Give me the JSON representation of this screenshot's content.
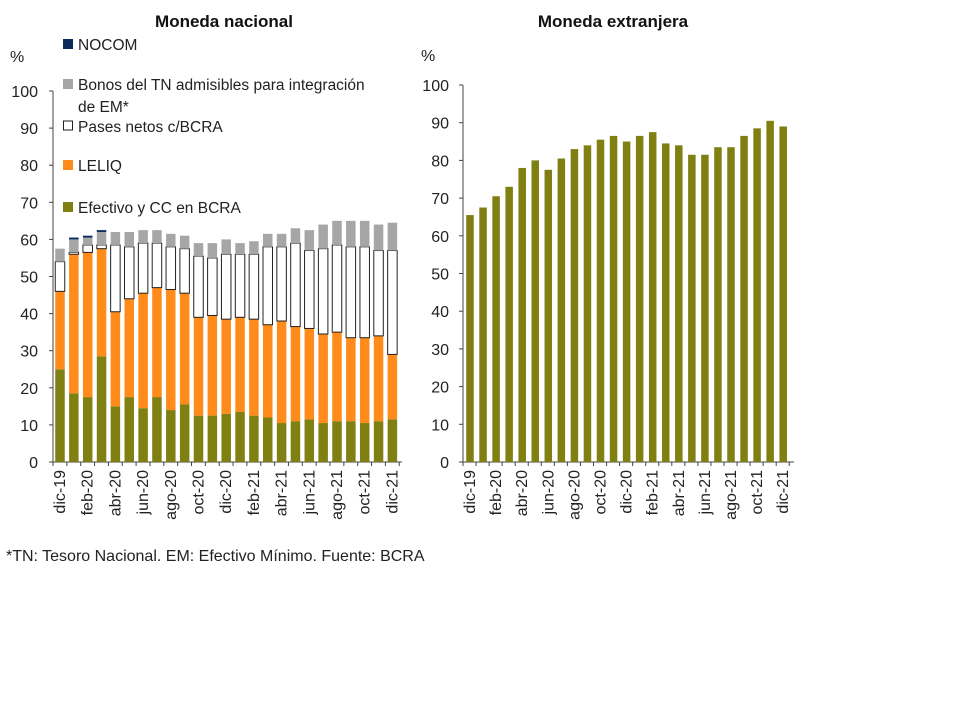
{
  "footnote": "*TN: Tesoro Nacional. EM: Efectivo Mínimo. Fuente: BCRA",
  "colors": {
    "nocom": "#0b2a5b",
    "bonos": "#a6a6a6",
    "pases": "#ffffff",
    "leliq": "#ff8c1a",
    "efectivo": "#7f7f12",
    "fx": "#7f7f12"
  },
  "chart_data": [
    {
      "type": "bar",
      "stacked": true,
      "title": "Moneda nacional",
      "ylabel": "%",
      "ylim": [
        0,
        100
      ],
      "yticks": [
        0,
        10,
        20,
        30,
        40,
        50,
        60,
        70,
        80,
        90,
        100
      ],
      "categories": [
        "dic-19",
        "ene-20",
        "feb-20",
        "mar-20",
        "abr-20",
        "may-20",
        "jun-20",
        "jul-20",
        "ago-20",
        "sep-20",
        "oct-20",
        "nov-20",
        "dic-20",
        "ene-21",
        "feb-21",
        "mar-21",
        "abr-21",
        "may-21",
        "jun-21",
        "jul-21",
        "ago-21",
        "sep-21",
        "oct-21",
        "nov-21",
        "dic-21"
      ],
      "tick_labels": [
        "dic-19",
        "feb-20",
        "abr-20",
        "jun-20",
        "ago-20",
        "oct-20",
        "dic-20",
        "feb-21",
        "abr-21",
        "jun-21",
        "ago-21",
        "oct-21",
        "dic-21"
      ],
      "legend": {
        "position": "top-left",
        "items": [
          {
            "key": "nocom",
            "label": "NOCOM"
          },
          {
            "key": "bonos",
            "label": "Bonos del TN admisibles para integración",
            "label2": "de EM*"
          },
          {
            "key": "pases",
            "label": "Pases netos c/BCRA"
          },
          {
            "key": "leliq",
            "label": "LELIQ"
          },
          {
            "key": "efectivo",
            "label": "Efectivo y CC en BCRA"
          }
        ]
      },
      "series": [
        {
          "name": "Efectivo y CC en BCRA",
          "key": "efectivo",
          "values": [
            25,
            18.5,
            17.5,
            28.5,
            15,
            17.5,
            14.5,
            17.5,
            14,
            15.5,
            12.5,
            12.5,
            13,
            13.5,
            12.5,
            12,
            10.5,
            11,
            11.5,
            10.5,
            11,
            11,
            10.5,
            11,
            11.5
          ]
        },
        {
          "name": "LELIQ",
          "key": "leliq",
          "values": [
            21,
            37.5,
            39,
            29,
            25.5,
            26.5,
            31,
            29.5,
            32.5,
            30,
            26.5,
            27,
            25.5,
            25.5,
            26,
            25,
            27.5,
            25.5,
            24.5,
            24,
            24,
            22.5,
            23,
            23,
            17.5
          ]
        },
        {
          "name": "Pases netos c/BCRA",
          "key": "pases",
          "values": [
            8,
            0.5,
            2,
            1,
            18,
            14,
            13.5,
            12,
            11.5,
            12,
            16.5,
            15.5,
            17.5,
            17,
            17.5,
            21,
            20,
            22.5,
            21,
            23,
            23.5,
            24.5,
            24.5,
            23,
            28
          ]
        },
        {
          "name": "Bonos del TN admisibles para integración de EM*",
          "key": "bonos",
          "values": [
            3.5,
            3.5,
            2,
            3.5,
            3.5,
            4,
            3.5,
            3.5,
            3.5,
            3.5,
            3.5,
            4,
            4,
            3,
            3.5,
            3.5,
            3.5,
            4,
            5.5,
            6.5,
            6.5,
            7,
            7,
            7,
            7.5
          ]
        },
        {
          "name": "NOCOM",
          "key": "nocom",
          "values": [
            0,
            0.5,
            0.5,
            0.5,
            0,
            0,
            0,
            0,
            0,
            0,
            0,
            0,
            0,
            0,
            0,
            0,
            0,
            0,
            0,
            0,
            0,
            0,
            0,
            0,
            0
          ]
        }
      ]
    },
    {
      "type": "bar",
      "title": "Moneda extranjera",
      "ylabel": "%",
      "ylim": [
        0,
        100
      ],
      "yticks": [
        0,
        10,
        20,
        30,
        40,
        50,
        60,
        70,
        80,
        90,
        100
      ],
      "categories": [
        "dic-19",
        "ene-20",
        "feb-20",
        "mar-20",
        "abr-20",
        "may-20",
        "jun-20",
        "jul-20",
        "ago-20",
        "sep-20",
        "oct-20",
        "nov-20",
        "dic-20",
        "ene-21",
        "feb-21",
        "mar-21",
        "abr-21",
        "may-21",
        "jun-21",
        "jul-21",
        "ago-21",
        "sep-21",
        "oct-21",
        "nov-21",
        "dic-21"
      ],
      "tick_labels": [
        "dic-19",
        "feb-20",
        "abr-20",
        "jun-20",
        "ago-20",
        "oct-20",
        "dic-20",
        "feb-21",
        "abr-21",
        "jun-21",
        "ago-21",
        "oct-21",
        "dic-21"
      ],
      "series": [
        {
          "key": "fx",
          "values": [
            65.5,
            67.5,
            70.5,
            73,
            78,
            80,
            77.5,
            80.5,
            83,
            84,
            85.5,
            86.5,
            85,
            86.5,
            87.5,
            84.5,
            84,
            81.5,
            81.5,
            83.5,
            83.5,
            86.5,
            88.5,
            90.5,
            89
          ]
        }
      ]
    }
  ]
}
